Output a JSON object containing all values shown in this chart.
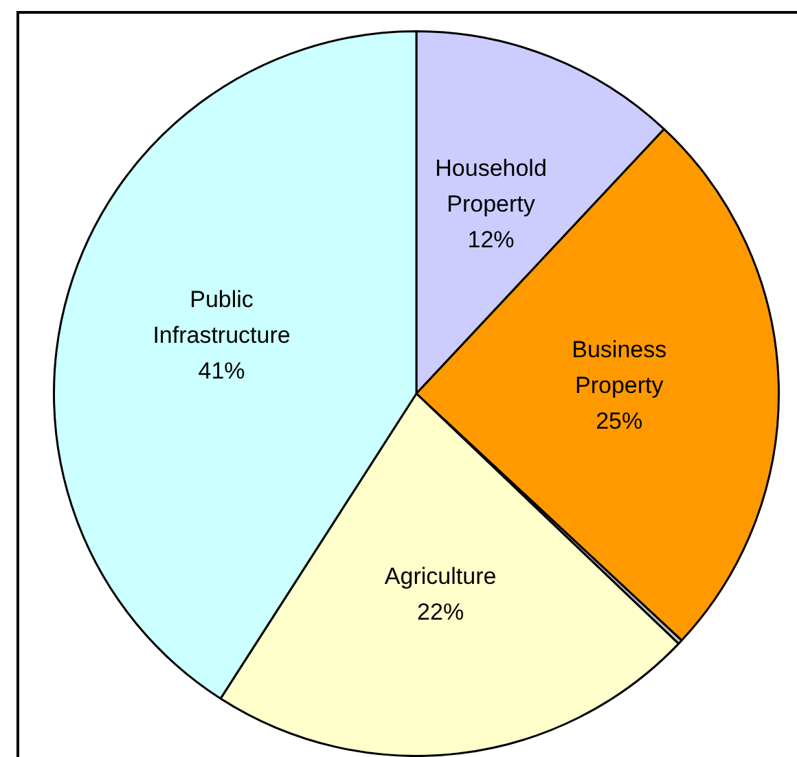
{
  "chart_data": {
    "type": "pie",
    "categories": [
      "Household Property",
      "Business Property",
      null,
      "Agriculture",
      "Public Infrastructure"
    ],
    "values": [
      12,
      25,
      0.2,
      22,
      41
    ],
    "value_labels": [
      "12%",
      "25%",
      null,
      "22%",
      "41%"
    ],
    "colors": [
      "#ccccff",
      "#ff9900",
      "#c0c0c0",
      "#ffffcc",
      "#ccffff"
    ],
    "legend": false
  }
}
